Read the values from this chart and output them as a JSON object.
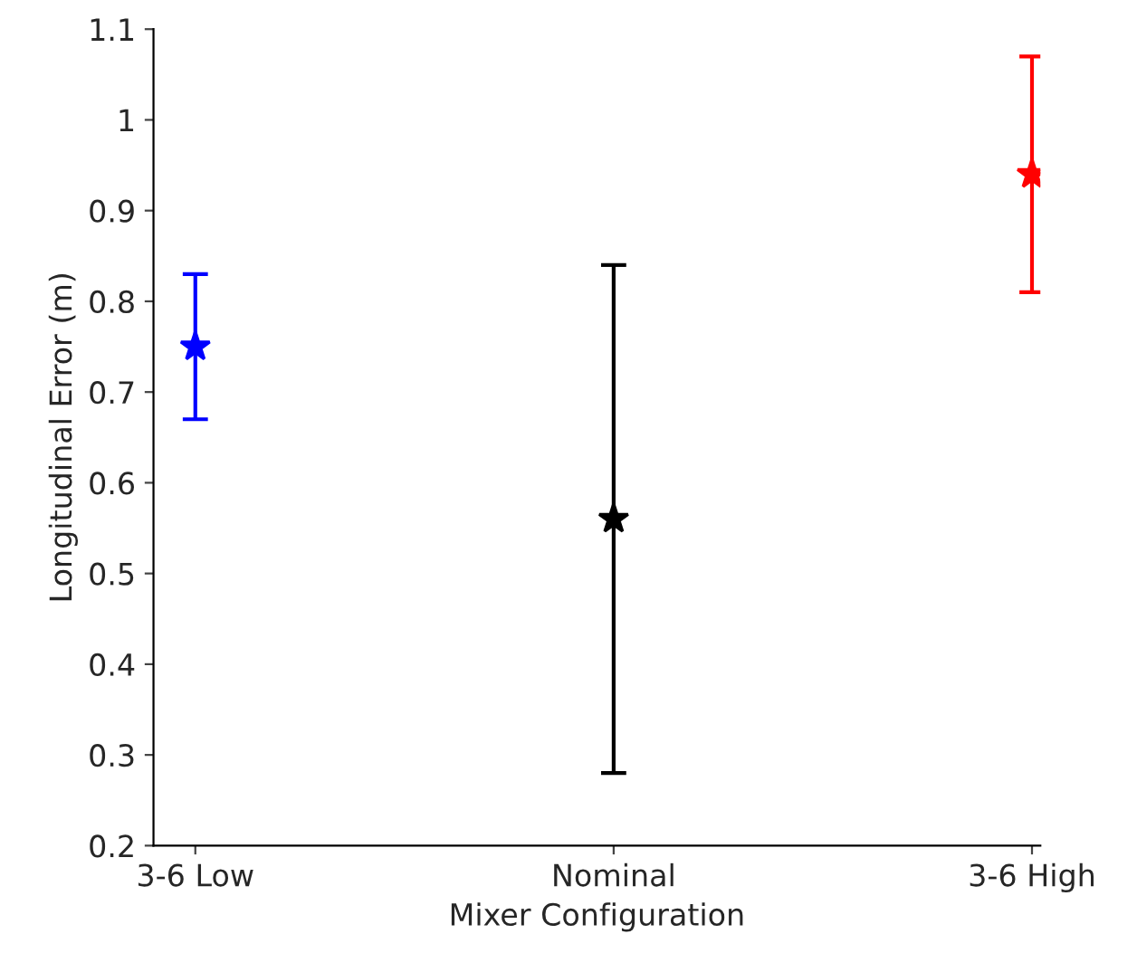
{
  "chart_data": {
    "type": "scatter",
    "xlabel": "Mixer Configuration",
    "ylabel": "Longitudinal Error (m)",
    "categories": [
      "3-6 Low",
      "Nominal",
      "3-6 High"
    ],
    "values": [
      0.75,
      0.56,
      0.94
    ],
    "errors": [
      [
        0.67,
        0.83
      ],
      [
        0.28,
        0.84
      ],
      [
        0.81,
        1.07
      ]
    ],
    "colors": [
      "#0000ff",
      "#000000",
      "#ff0000"
    ],
    "marker": "star",
    "ylim": [
      0.2,
      1.1
    ],
    "yticks": [
      0.2,
      0.3,
      0.4,
      0.5,
      0.6,
      0.7,
      0.8,
      0.9,
      1,
      1.1
    ],
    "grid": false
  }
}
